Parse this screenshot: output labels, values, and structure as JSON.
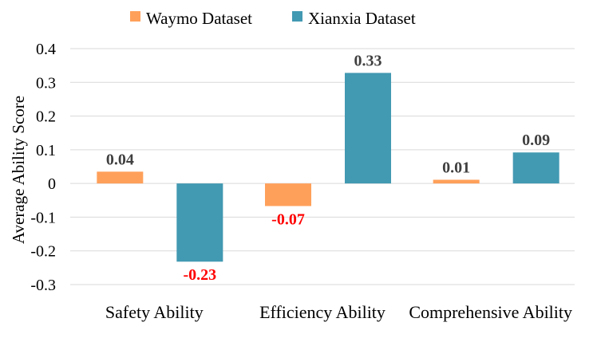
{
  "chart_data": {
    "type": "bar",
    "title": "",
    "xlabel": "",
    "ylabel": "Average Ability Score",
    "ylim": [
      -0.3,
      0.4
    ],
    "yticks": [
      "0.4",
      "0.3",
      "0.2",
      "0.1",
      "0",
      "-0.1",
      "-0.2",
      "-0.3"
    ],
    "grid": "horizontal",
    "legend_position": "top-center",
    "categories": [
      "Safety Ability",
      "Efficiency Ability",
      "Comprehensive Ability"
    ],
    "series": [
      {
        "name": "Waymo Dataset",
        "color": "#FFA05A",
        "values": [
          0.035,
          -0.067,
          0.011
        ],
        "labels": [
          "0.04",
          "-0.07",
          "0.01"
        ]
      },
      {
        "name": "Xianxia Dataset",
        "color": "#4299B2",
        "values": [
          -0.232,
          0.328,
          0.092
        ],
        "labels": [
          "-0.23",
          "0.33",
          "0.09"
        ]
      }
    ],
    "label_colors": {
      "positive": "#404040",
      "negative": "#FF0000"
    }
  }
}
